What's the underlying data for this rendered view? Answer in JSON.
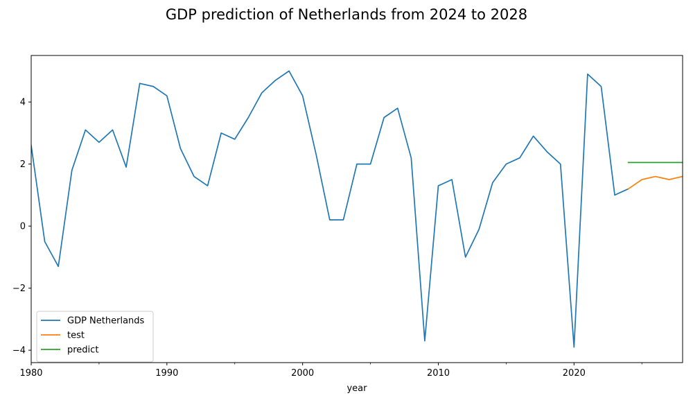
{
  "chart_data": {
    "type": "line",
    "title": "GDP prediction of Netherlands from 2024 to 2028",
    "xlabel": "year",
    "ylabel": "",
    "xlim": [
      1980,
      2028
    ],
    "ylim": [
      -4.4,
      5.5
    ],
    "xticks": [
      1980,
      1990,
      2000,
      2010,
      2020
    ],
    "xtick_labels": [
      "1980",
      "1990",
      "2000",
      "2010",
      "2020"
    ],
    "xticks_minor": [
      1985,
      1995,
      2005,
      2015,
      2025
    ],
    "yticks": [
      -4,
      -2,
      0,
      2,
      4
    ],
    "ytick_labels": [
      "−4",
      "−2",
      "0",
      "2",
      "4"
    ],
    "grid": false,
    "legend_position": "lower-left",
    "series": [
      {
        "name": "GDP Netherlands",
        "color": "#1f77b4",
        "x": [
          1980,
          1981,
          1982,
          1983,
          1984,
          1985,
          1986,
          1987,
          1988,
          1989,
          1990,
          1991,
          1992,
          1993,
          1994,
          1995,
          1996,
          1997,
          1998,
          1999,
          2000,
          2001,
          2002,
          2003,
          2004,
          2005,
          2006,
          2007,
          2008,
          2009,
          2010,
          2011,
          2012,
          2013,
          2014,
          2015,
          2016,
          2017,
          2018,
          2019,
          2020,
          2021,
          2022,
          2023,
          2024
        ],
        "values": [
          2.6,
          -0.5,
          -1.3,
          1.8,
          3.1,
          2.7,
          3.1,
          1.9,
          4.6,
          4.5,
          4.2,
          2.5,
          1.6,
          1.3,
          3.0,
          2.8,
          3.5,
          4.3,
          4.7,
          5.0,
          4.2,
          2.3,
          0.2,
          0.2,
          2.0,
          2.0,
          3.5,
          3.8,
          2.2,
          -3.7,
          1.3,
          1.5,
          -1.0,
          -0.1,
          1.4,
          2.0,
          2.2,
          2.9,
          2.4,
          2.0,
          -3.9,
          4.9,
          4.5,
          1.0,
          1.2
        ]
      },
      {
        "name": "test",
        "color": "#ff7f0e",
        "x": [
          2024,
          2025,
          2026,
          2027,
          2028
        ],
        "values": [
          1.2,
          1.5,
          1.6,
          1.5,
          1.6
        ]
      },
      {
        "name": "predict",
        "color": "#2ca02c",
        "x": [
          2024,
          2025,
          2026,
          2027,
          2028
        ],
        "values": [
          2.05,
          2.05,
          2.05,
          2.05,
          2.05
        ]
      }
    ]
  }
}
